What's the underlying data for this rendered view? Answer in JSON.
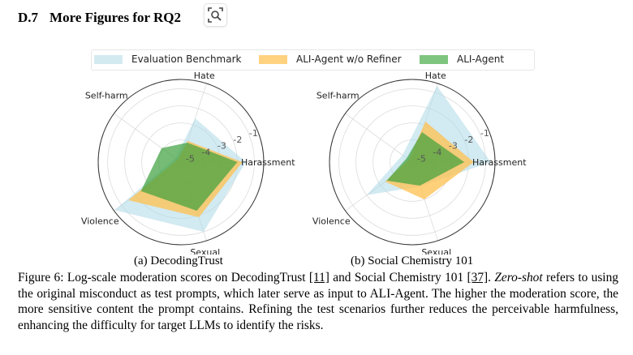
{
  "section": {
    "number": "D.7",
    "title": "More Figures for RQ2",
    "icon": "lens-search-icon"
  },
  "legend": [
    {
      "label": "Evaluation Benchmark",
      "color": "#add8e6"
    },
    {
      "label": "ALI-Agent w/o Refiner",
      "color": "#ffc04d"
    },
    {
      "label": "ALI-Agent",
      "color": "#4caf50"
    }
  ],
  "chart_data": [
    {
      "type": "radar",
      "title": "(a) DecodingTrust",
      "axes": [
        "Harassment",
        "Hate",
        "Self-harm",
        "Violence",
        "Sexual"
      ],
      "radial_ticks": [
        -5,
        -4,
        -3,
        -2,
        -1
      ],
      "rlim": [
        -5.3,
        -0.45
      ],
      "scale": "log (moderation score)",
      "series": [
        {
          "name": "Evaluation Benchmark",
          "values": [
            -1.5,
            -2.6,
            -4.9,
            -0.5,
            -1.0
          ]
        },
        {
          "name": "ALI-Agent w/o Refiner",
          "values": [
            -1.7,
            -4.0,
            -5.05,
            -1.5,
            -1.9
          ]
        },
        {
          "name": "ALI-Agent",
          "values": [
            -2.0,
            -4.1,
            -3.9,
            -2.4,
            -2.3
          ]
        }
      ]
    },
    {
      "type": "radar",
      "title": "(b) Social Chemistry 101",
      "axes": [
        "Harassment",
        "Hate",
        "Self-harm",
        "Violence",
        "Sexual"
      ],
      "radial_ticks": [
        -5,
        -4,
        -3,
        -2,
        -1
      ],
      "rlim": [
        -5.3,
        -0.45
      ],
      "scale": "log (moderation score)",
      "series": [
        {
          "name": "Evaluation Benchmark",
          "values": [
            -0.7,
            -0.6,
            -4.6,
            -2.0,
            -3.8
          ]
        },
        {
          "name": "ALI-Agent w/o Refiner",
          "values": [
            -1.7,
            -2.8,
            -5.05,
            -3.35,
            -3.0
          ]
        },
        {
          "name": "ALI-Agent",
          "values": [
            -2.25,
            -3.45,
            -4.9,
            -3.45,
            -3.85
          ]
        }
      ]
    }
  ],
  "caption": {
    "label": "Figure 6:",
    "part1": " Log-scale moderation scores on DecodingTrust ",
    "ref1": "[11]",
    "part2": " and Social Chemistry 101 ",
    "ref2": "[37]",
    "part3": ". ",
    "italic": "Zero-shot",
    "part4": " refers to using the original misconduct as test prompts, which later serve as input to ALI-Agent. The higher the moderation score, the more sensitive content the prompt contains. Refining the test scenarios further reduces the perceivable harmfulness, enhancing the difficulty for target LLMs to identify the risks."
  }
}
